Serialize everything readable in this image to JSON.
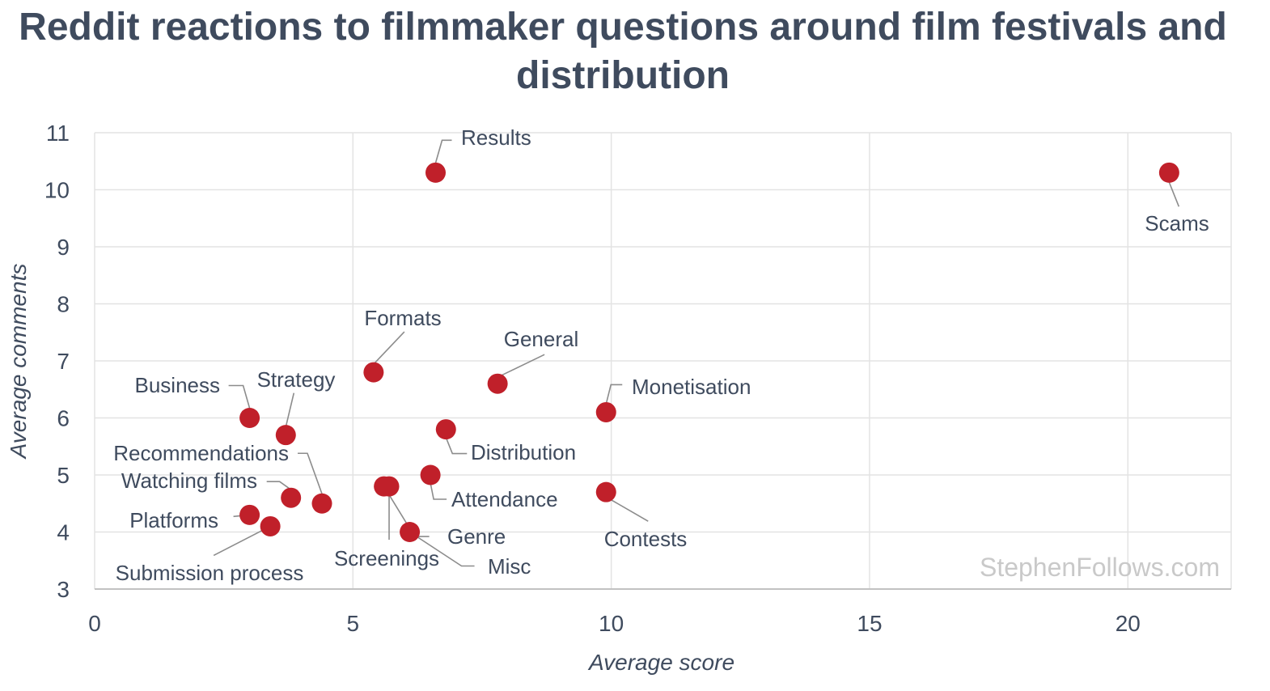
{
  "chart_data": {
    "type": "scatter",
    "title": "Reddit reactions to filmmaker questions around film festivals and distribution",
    "xlabel": "Average score",
    "ylabel": "Average comments",
    "xlim": [
      0,
      22
    ],
    "ylim": [
      3,
      11
    ],
    "x_ticks": [
      "0",
      "5",
      "10",
      "15",
      "20"
    ],
    "y_ticks": [
      "3",
      "4",
      "5",
      "6",
      "7",
      "8",
      "9",
      "10",
      "11"
    ],
    "grid": true,
    "point_color": "#c0202a",
    "watermark": "StephenFollows.com",
    "points": [
      {
        "label": "Results",
        "x": 6.6,
        "y": 10.3
      },
      {
        "label": "Scams",
        "x": 20.8,
        "y": 10.3
      },
      {
        "label": "Formats",
        "x": 5.4,
        "y": 6.8
      },
      {
        "label": "General",
        "x": 7.8,
        "y": 6.6
      },
      {
        "label": "Business",
        "x": 3.0,
        "y": 6.0
      },
      {
        "label": "Strategy",
        "x": 3.7,
        "y": 5.7
      },
      {
        "label": "Monetisation",
        "x": 9.9,
        "y": 6.1
      },
      {
        "label": "Distribution",
        "x": 6.8,
        "y": 5.8
      },
      {
        "label": "Recommendations",
        "x": 4.4,
        "y": 4.5
      },
      {
        "label": "Watching films",
        "x": 3.8,
        "y": 4.6
      },
      {
        "label": "Attendance",
        "x": 6.5,
        "y": 5.0
      },
      {
        "label": "Contests",
        "x": 9.9,
        "y": 4.7
      },
      {
        "label": "Platforms",
        "x": 3.0,
        "y": 4.3
      },
      {
        "label": "Screenings",
        "x": 5.7,
        "y": 4.8
      },
      {
        "label": "Genre",
        "x": 5.6,
        "y": 4.8
      },
      {
        "label": "Submission process",
        "x": 3.4,
        "y": 4.1
      },
      {
        "label": "Misc",
        "x": 6.1,
        "y": 4.0
      }
    ]
  }
}
